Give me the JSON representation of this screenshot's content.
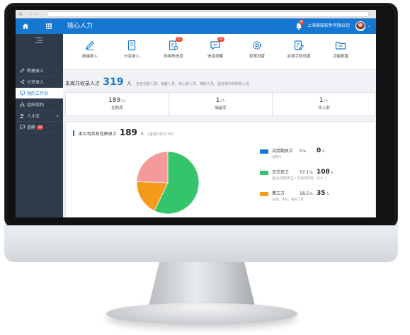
{
  "app": {
    "title": "核心人力",
    "company": "上海商知软件有限公司",
    "notification_count": "4"
  },
  "sidebar": {
    "items": [
      {
        "label": "新建录入",
        "badge": ""
      },
      {
        "label": "分享录入",
        "badge": ""
      },
      {
        "label": "我的工作台",
        "badge": ""
      },
      {
        "label": "组织架构",
        "badge": ""
      },
      {
        "label": "人才库",
        "badge": ""
      },
      {
        "label": "提醒",
        "badge": "30"
      }
    ]
  },
  "quick_actions": [
    {
      "label": "新建录入",
      "icon": "pencil-icon",
      "badge": ""
    },
    {
      "label": "分享录入",
      "icon": "document-icon",
      "badge": ""
    },
    {
      "label": "待审核信息",
      "icon": "audit-doc-icon",
      "badge": "31"
    },
    {
      "label": "信息提醒",
      "icon": "chat-bubble-icon",
      "badge": "30"
    },
    {
      "label": "权限设置",
      "icon": "gear-icon",
      "badge": ""
    },
    {
      "label": "必填字段设置",
      "icon": "edit-doc-icon",
      "badge": ""
    },
    {
      "label": "功能配置",
      "icon": "folder-icon",
      "badge": ""
    }
  ],
  "summary": {
    "prefix": "本库共收录人才",
    "total": "319",
    "unit": "人",
    "note": "包含在职人员、储备人员、待入职人员、离职人员、黑名单中的所有人员"
  },
  "stats": [
    {
      "value": "189",
      "unit": "/人",
      "label": "在职库"
    },
    {
      "value": "1",
      "unit": "/人",
      "label": "储备库"
    },
    {
      "value": "1",
      "unit": "/人",
      "label": "待入职"
    }
  ],
  "employee_panel": {
    "prefix": "本公司共有在职员工",
    "total": "189",
    "unit": "人",
    "date_note": "(当月/2017-03)"
  },
  "chart_data": {
    "type": "pie",
    "title": "本公司共有在职员工",
    "series": [
      {
        "name": "试用期员工",
        "count": 0,
        "percent": 0,
        "color": "#1677d2",
        "sub": "试用中"
      },
      {
        "name": "正式员工",
        "count": 108,
        "percent": 57.1,
        "color": "#35c46b",
        "sub": "通过试用期转正 ( 信息待完善 : 40人 )"
      },
      {
        "name": "第三方",
        "count": 35,
        "percent": 18.5,
        "color": "#f59a1b",
        "sub": "派遣、外包、临时工等"
      },
      {
        "name": "",
        "count": null,
        "percent": 24.4,
        "color": "#f59a9a",
        "sub": ""
      }
    ]
  },
  "legend": [
    {
      "name": "试用期员工",
      "pct": "0",
      "pct_unit": "%",
      "count": "0",
      "count_unit": "人",
      "sub": "试用中"
    },
    {
      "name": "正式员工",
      "pct": "57.1",
      "pct_unit": "%",
      "count": "108",
      "count_unit": "人",
      "sub": "通过试用期转正 ( 信息待完善 : 40人 )"
    },
    {
      "name": "第三方",
      "pct": "18.5",
      "pct_unit": "%",
      "count": "35",
      "count_unit": "人",
      "sub": "派遣、外包、临时工等"
    }
  ]
}
